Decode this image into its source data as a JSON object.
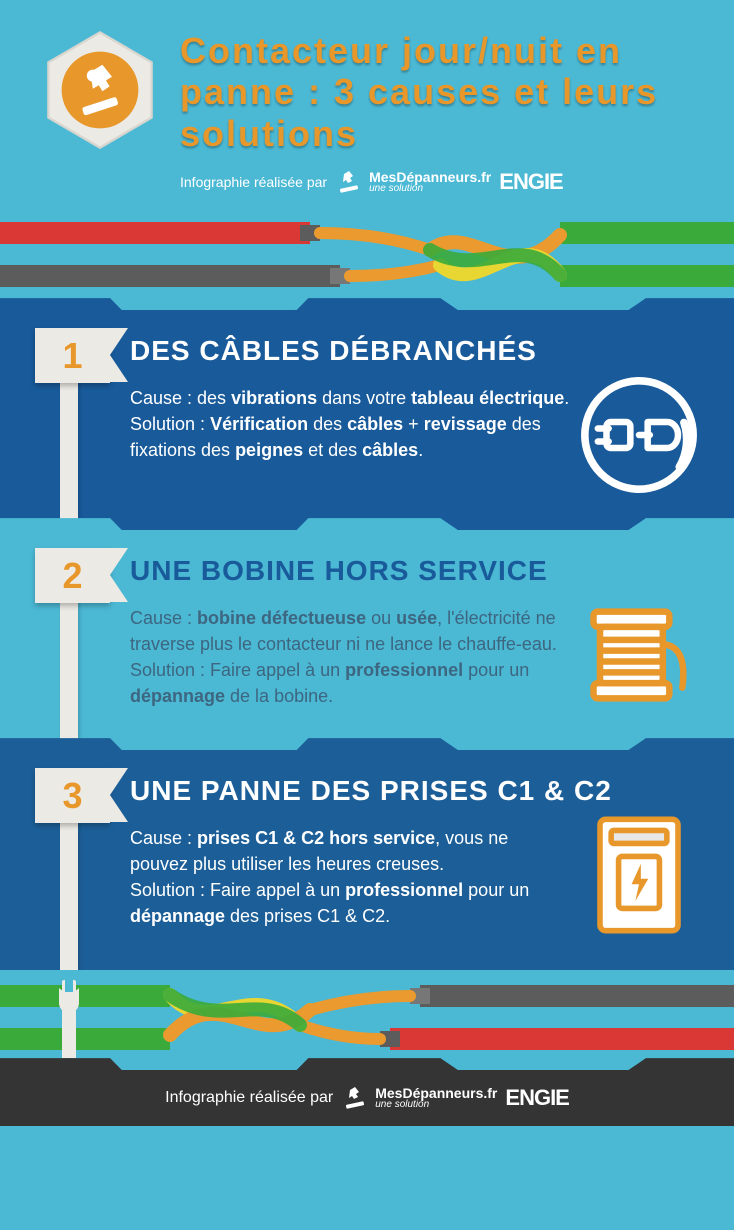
{
  "colors": {
    "orange": "#e8972b",
    "sky": "#4bb8d4",
    "blue_dark": "#185a9a",
    "blue_deep": "#1c5f98",
    "ribbon_bg": "#eceae4",
    "footer_bg": "#343434",
    "wire_red": "#d93834",
    "wire_green": "#3aab3a",
    "wire_yellow": "#e8d632",
    "wire_orange": "#ea9a2f",
    "wire_gray": "#5c5c5c"
  },
  "header": {
    "title": "Contacteur jour/nuit en panne : 3 causes et leurs solutions",
    "byline_prefix": "Infographie réalisée par",
    "logo_brand": "MesDépanneurs.fr",
    "logo_sub": "une solution",
    "logo_engie": "ENGIE"
  },
  "sections": [
    {
      "number": "1",
      "bg": "blue-dark",
      "icon": "plug",
      "title": "DES CÂBLES DÉBRANCHÉS",
      "body_html": "Cause : des <b>vibrations</b> dans votre <b>tableau électrique</b>.<br>Solution : <b>Vérification</b> des <b>câbles</b> + <b>revissage</b> des fixations des <b>peignes</b> et des <b>câbles</b>."
    },
    {
      "number": "2",
      "bg": "blue-mid",
      "icon": "spool",
      "title": "UNE BOBINE HORS SERVICE",
      "body_html": "Cause : <b>bobine défectueuse</b> ou <b>usée</b>, l'électricité ne traverse plus le contacteur ni ne lance le chauffe-eau.<br>Solution : Faire appel à un <b>professionnel</b> pour un <b>dépannage</b> de la bobine."
    },
    {
      "number": "3",
      "bg": "blue-deep",
      "icon": "panel",
      "title": "UNE PANNE DES PRISES C1 & C2",
      "body_html": "Cause : <b>prises C1 & C2 hors service</b>, vous ne pouvez plus utiliser les heures creuses.<br>Solution : Faire appel à un <b>professionnel</b> pour un <b>dépannage</b> des prises C1 & C2."
    }
  ],
  "footer": {
    "byline_prefix": "Infographie réalisée par",
    "logo_brand": "MesDépanneurs.fr",
    "logo_sub": "une solution",
    "logo_engie": "ENGIE"
  }
}
